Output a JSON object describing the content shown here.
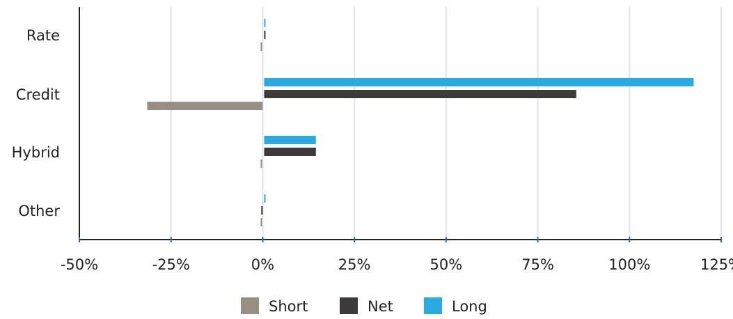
{
  "chart_data": {
    "type": "bar",
    "orientation": "horizontal",
    "categories": [
      "Rate",
      "Credit",
      "Hybrid",
      "Other"
    ],
    "series": [
      {
        "name": "Long",
        "color": "#29abe2",
        "values": [
          0.5,
          117.5,
          14.5,
          0.5
        ]
      },
      {
        "name": "Net",
        "color": "#3e3a39",
        "values": [
          0.6,
          85.5,
          14.5,
          -0.4
        ]
      },
      {
        "name": "Short",
        "color": "#978e84",
        "values": [
          -0.3,
          -31.5,
          -0.2,
          -0.2
        ]
      }
    ],
    "legend_order": [
      "Short",
      "Net",
      "Long"
    ],
    "xticks": [
      "-50%",
      "-25%",
      "0%",
      "25%",
      "50%",
      "75%",
      "100%",
      "125%"
    ],
    "xlim": [
      -50,
      125
    ],
    "grid": "vertical",
    "legend_position": "bottom"
  }
}
